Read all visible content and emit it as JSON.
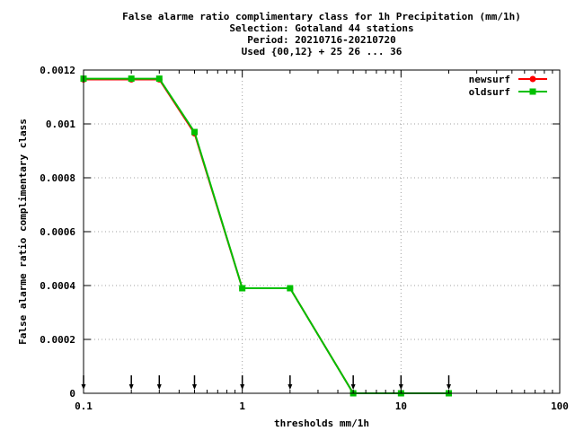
{
  "chart_data": {
    "type": "line",
    "title_lines": [
      "False alarme ratio complimentary class  for 1h Precipitation (mm/1h)",
      "Selection: Gotaland     44 stations",
      "Period: 20210716-20210720",
      "Used {00,12} + 25 26 ... 36"
    ],
    "xlabel": "thresholds mm/1h",
    "ylabel": "False alarme ratio complimentary class",
    "x_scale": "log",
    "xlim": [
      0.1,
      100
    ],
    "ylim": [
      0,
      0.0012
    ],
    "x_ticks": [
      {
        "value": 0.1,
        "label": "0.1"
      },
      {
        "value": 1,
        "label": "1"
      },
      {
        "value": 10,
        "label": "10"
      },
      {
        "value": 100,
        "label": "100"
      }
    ],
    "y_ticks": [
      {
        "value": 0,
        "label": "0"
      },
      {
        "value": 0.0002,
        "label": "0.0002"
      },
      {
        "value": 0.0004,
        "label": "0.0004"
      },
      {
        "value": 0.0006,
        "label": "0.0006"
      },
      {
        "value": 0.0008,
        "label": "0.0008"
      },
      {
        "value": 0.001,
        "label": "0.001"
      },
      {
        "value": 0.0012,
        "label": "0.0012"
      }
    ],
    "grid": true,
    "legend_position": "top-right",
    "series": [
      {
        "name": "newsurf",
        "color": "#ff0000",
        "marker": "circle",
        "x": [
          0.1,
          0.2,
          0.3,
          0.5,
          1,
          2,
          5,
          10,
          20
        ],
        "y": [
          0.001165,
          0.001165,
          0.001165,
          0.000965,
          0.00039,
          0.00039,
          0.0,
          0.0,
          0.0
        ]
      },
      {
        "name": "oldsurf",
        "color": "#00c000",
        "marker": "square",
        "x": [
          0.1,
          0.2,
          0.3,
          0.5,
          1,
          2,
          5,
          10,
          20
        ],
        "y": [
          0.001168,
          0.001168,
          0.001168,
          0.00097,
          0.00039,
          0.00039,
          0.0,
          0.0,
          0.0
        ]
      }
    ],
    "threshold_markers_x": [
      0.1,
      0.2,
      0.3,
      0.5,
      1,
      2,
      5,
      10,
      20
    ]
  }
}
